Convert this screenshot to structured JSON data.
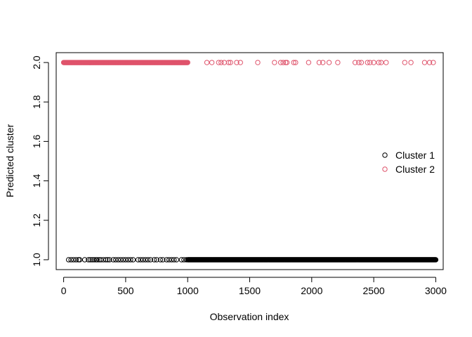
{
  "chart_data": {
    "type": "scatter",
    "title": "",
    "xlabel": "Observation index",
    "ylabel": "Predicted cluster",
    "xlim": [
      -60,
      3060
    ],
    "ylim": [
      0.95,
      2.05
    ],
    "xticks": [
      0,
      500,
      1000,
      1500,
      2000,
      2500,
      3000
    ],
    "yticks": [
      1.0,
      1.2,
      1.4,
      1.6,
      1.8,
      2.0
    ],
    "ytick_labels": [
      "1.0",
      "1.2",
      "1.4",
      "1.6",
      "1.8",
      "2.0"
    ],
    "grid": false,
    "legend_position": "right",
    "series": [
      {
        "name": "Cluster 1",
        "color": "#000000",
        "y": 1,
        "x_dense_range": [
          1000,
          3000
        ],
        "x_sparse": [
          40,
          60,
          80,
          100,
          120,
          130,
          170,
          200,
          215,
          230,
          245,
          260,
          270,
          285,
          300,
          320,
          340,
          355,
          370,
          400,
          420,
          440,
          460,
          480,
          500,
          520,
          540,
          560,
          600,
          620,
          640,
          660,
          680,
          700,
          730,
          750,
          780,
          800,
          830,
          850,
          870,
          890,
          910,
          950,
          970,
          990
        ]
      },
      {
        "name": "Cluster 2",
        "color": "#DF536B",
        "y": 2,
        "x_dense_range": [
          0,
          1000
        ],
        "x_sparse": [
          1155,
          1195,
          1250,
          1270,
          1295,
          1330,
          1345,
          1395,
          1425,
          1565,
          1700,
          1750,
          1770,
          1790,
          1800,
          1855,
          1870,
          1975,
          2060,
          2090,
          2140,
          2210,
          2350,
          2380,
          2400,
          2450,
          2470,
          2500,
          2540,
          2560,
          2600,
          2750,
          2800,
          2910,
          2950,
          2980
        ]
      }
    ]
  }
}
